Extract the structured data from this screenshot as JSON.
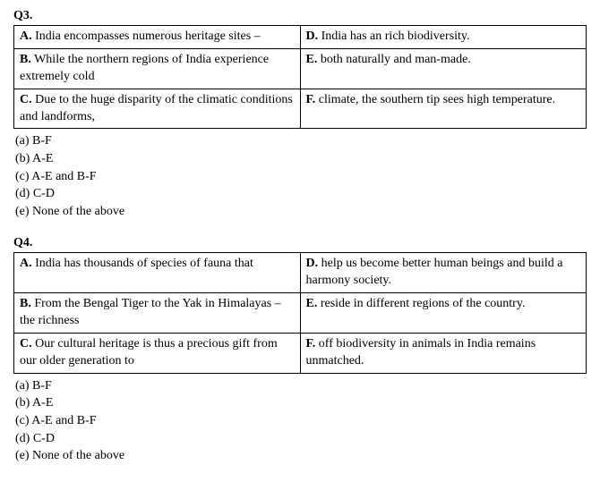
{
  "q3": {
    "label": "Q3.",
    "rows": [
      {
        "left_label": "A.",
        "left_text": " India encompasses numerous heritage sites –",
        "right_label": "D.",
        "right_text": " India has an rich biodiversity."
      },
      {
        "left_label": "B.",
        "left_text": " While the northern regions of India experience extremely cold",
        "right_label": "E.",
        "right_text": " both naturally and man-made."
      },
      {
        "left_label": "C.",
        "left_text": " Due to the huge disparity of the climatic conditions and landforms,",
        "right_label": "F.",
        "right_text": " climate, the southern tip sees high temperature."
      }
    ],
    "options": [
      "(a) B-F",
      "(b) A-E",
      "(c) A-E and B-F",
      "(d) C-D",
      "(e) None of the above"
    ]
  },
  "q4": {
    "label": "Q4.",
    "rows": [
      {
        "left_label": "A.",
        "left_text": "  India has thousands of species of fauna that",
        "right_label": "D.",
        "right_text": " help us become better human beings and build a harmony society."
      },
      {
        "left_label": "B.",
        "left_text": " From the Bengal Tiger to the Yak in Himalayas – the richness",
        "right_label": "E.",
        "right_text": " reside in different regions of the country."
      },
      {
        "left_label": "C.",
        "left_text": " Our cultural heritage is thus a precious gift from our older generation to",
        "right_label": "F.",
        "right_text": " off biodiversity in animals in India remains unmatched."
      }
    ],
    "options": [
      "(a) B-F",
      "(b) A-E",
      "(c) A-E and B-F",
      "(d) C-D",
      "(e) None of the above"
    ]
  }
}
